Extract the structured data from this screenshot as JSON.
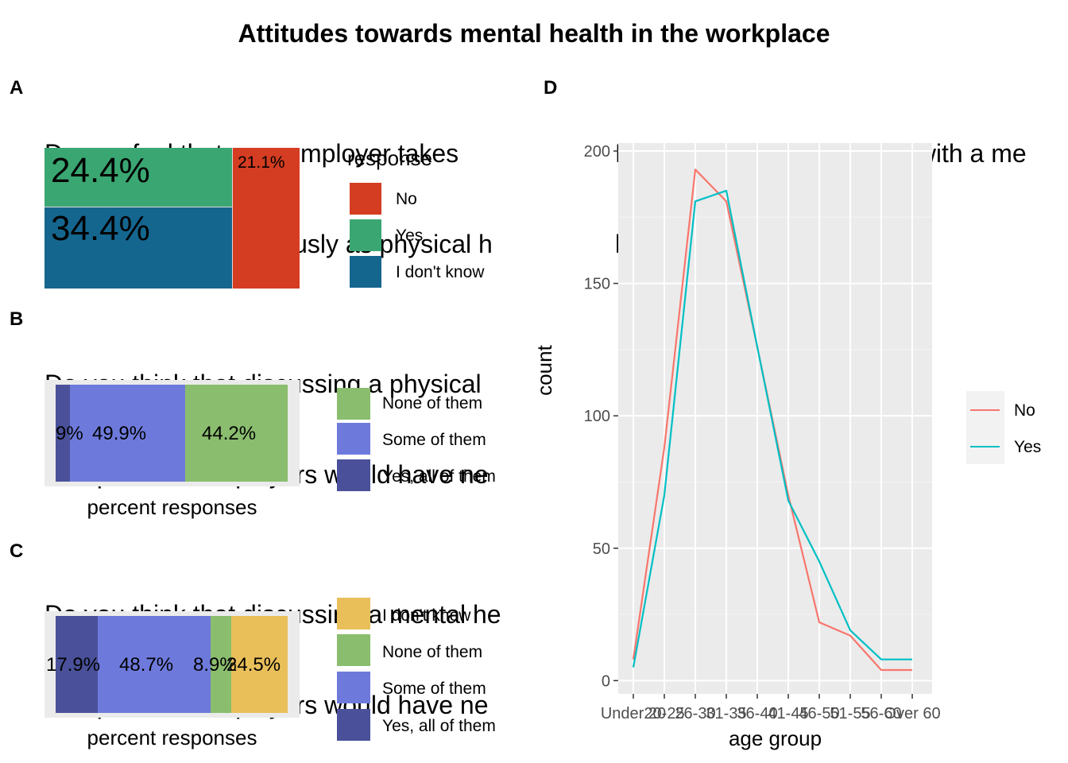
{
  "title": "Attitudes towards mental health in the workplace",
  "panels": {
    "A": {
      "label": "A",
      "question_line1": "Do you feel that your employer takes",
      "question_line2": "mental health as seriously as physical h",
      "legend_title": "response",
      "legend": [
        "No",
        "Yes",
        "I don't know"
      ],
      "labels": {
        "yes": "24.4%",
        "idk": "34.4%",
        "no": "21.1%"
      }
    },
    "B": {
      "label": "B",
      "question_line1": "Do you think that discussing a physical",
      "question_line2": "with previous employers would have ne",
      "xlabel": "percent responses",
      "legend": [
        "None of them",
        "Some of them",
        "Yes, all of them"
      ],
      "labels": [
        "5.9%",
        "49.9%",
        "44.2%"
      ]
    },
    "C": {
      "label": "C",
      "question_line1": "Do you think that discussing a mental he",
      "question_line2": "with previous employers would have ne",
      "xlabel": "percent responses",
      "legend": [
        "I don't know",
        "None of them",
        "Some of them",
        "Yes, all of them"
      ],
      "labels": [
        "17.9%",
        "48.7%",
        "8.9%",
        "24.5%"
      ]
    },
    "D": {
      "label": "D",
      "question_line1": "Have you been diagnosed with a me",
      "question_line2": "by a medical professional?",
      "xlabel": "age group",
      "ylabel": "count",
      "legend": [
        "No",
        "Yes"
      ]
    }
  },
  "colors": {
    "no_red": "#D43D22",
    "yes_green": "#3AA672",
    "idk_blue": "#15668F",
    "none_green": "#8ABD6E",
    "some_blue": "#6E7ADB",
    "all_indigo": "#4A519A",
    "idk_yellow": "#E9BF5A",
    "line_no": "#F8766D",
    "line_yes": "#00BFC4",
    "panel_bg": "#EBEBEB"
  },
  "chart_data": [
    {
      "type": "bar",
      "panel": "A",
      "title": "Do you feel that your employer takes mental health as seriously as physical h",
      "categories": [
        "No",
        "Yes",
        "I don't know"
      ],
      "values": [
        21.1,
        24.4,
        34.4
      ]
    },
    {
      "type": "bar",
      "panel": "B",
      "title": "Do you think that discussing a physical with previous employers would have ne",
      "xlabel": "percent responses",
      "categories": [
        "Yes, all of them",
        "Some of them",
        "None of them"
      ],
      "values": [
        5.9,
        49.9,
        44.2
      ]
    },
    {
      "type": "bar",
      "panel": "C",
      "title": "Do you think that discussing a mental he with previous employers would have ne",
      "xlabel": "percent responses",
      "categories": [
        "Yes, all of them",
        "Some of them",
        "None of them",
        "I don't know"
      ],
      "values": [
        17.9,
        48.7,
        8.9,
        24.5
      ]
    },
    {
      "type": "line",
      "panel": "D",
      "title": "Have you been diagnosed with a me by a medical professional?",
      "xlabel": "age group",
      "ylabel": "count",
      "categories": [
        "Under 20",
        "20-25",
        "26-30",
        "31-35",
        "36-40",
        "41-45",
        "46-50",
        "51-55",
        "56-60",
        "Over 60"
      ],
      "series": [
        {
          "name": "No",
          "values": [
            8,
            88,
            193,
            181,
            126,
            70,
            22,
            17,
            4,
            4
          ]
        },
        {
          "name": "Yes",
          "values": [
            5,
            70,
            181,
            185,
            126,
            68,
            45,
            19,
            8,
            8
          ]
        }
      ],
      "ylim": [
        -5,
        203
      ],
      "yticks": [
        0,
        50,
        100,
        150,
        200
      ],
      "grid": true,
      "legend_position": "right"
    }
  ]
}
